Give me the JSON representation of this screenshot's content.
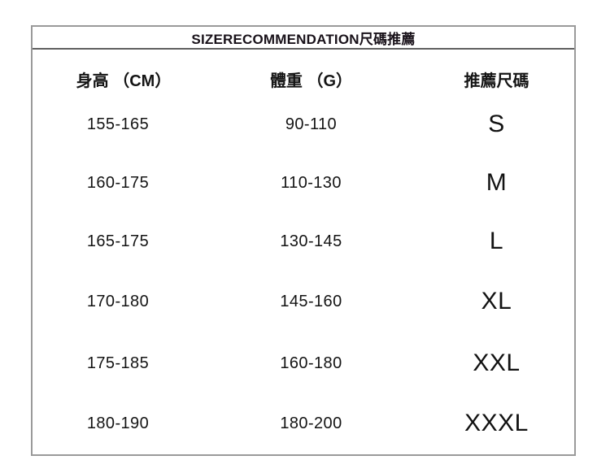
{
  "title": "SIZERECOMMENDATION尺碼推薦",
  "colors": {
    "background": "#ffffff",
    "text": "#141414",
    "outer_border": "#9a9a9a",
    "title_divider": "#5f5f5f"
  },
  "chart_data": {
    "type": "table",
    "title": "SIZERECOMMENDATION尺碼推薦",
    "columns": [
      "身高 （CM）",
      "體重 （G）",
      "推薦尺碼"
    ],
    "rows": [
      [
        "155-165",
        "90-110",
        "S"
      ],
      [
        "160-175",
        "110-130",
        "M"
      ],
      [
        "165-175",
        "130-145",
        "L"
      ],
      [
        "170-180",
        "145-160",
        "XL"
      ],
      [
        "175-185",
        "160-180",
        "XXL"
      ],
      [
        "180-190",
        "180-200",
        "XXXL"
      ]
    ]
  }
}
